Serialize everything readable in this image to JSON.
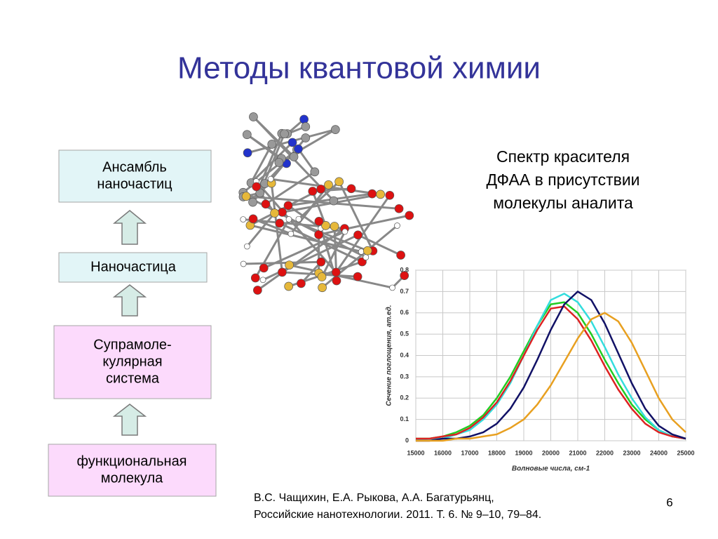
{
  "title": "Методы квантовой химии",
  "boxes": [
    {
      "lines": [
        "Ансамбль",
        "наночастиц"
      ]
    },
    {
      "lines": [
        "Наночастица"
      ]
    },
    {
      "lines": [
        "Супрамоле-",
        "кулярная",
        "система"
      ]
    },
    {
      "lines": [
        "функциональная",
        "молекула"
      ]
    }
  ],
  "caption": [
    "Спектр красителя",
    "ДФАА в присутствии",
    "молекулы аналита"
  ],
  "reference": [
    "В.С. Чащихин, Е.А. Рыкова, А.А. Багатурьянц,",
    "Российские нанотехнологии. 2011. Т. 6. № 9–10, 79–84."
  ],
  "page_number": "6",
  "chart_data": {
    "type": "line",
    "xlabel": "Волновые числа, см-1",
    "ylabel": "Сечение поглощения, ат.ед.",
    "x": [
      15000,
      15500,
      16000,
      16500,
      17000,
      17500,
      18000,
      18500,
      19000,
      19500,
      20000,
      20500,
      21000,
      21500,
      22000,
      22500,
      23000,
      23500,
      24000,
      24500,
      25000
    ],
    "series": [
      {
        "color": "#22cc22",
        "values": [
          0.01,
          0.01,
          0.02,
          0.04,
          0.07,
          0.12,
          0.2,
          0.3,
          0.42,
          0.54,
          0.64,
          0.65,
          0.6,
          0.5,
          0.38,
          0.27,
          0.17,
          0.1,
          0.05,
          0.02,
          0.01
        ]
      },
      {
        "color": "#33dddd",
        "values": [
          0,
          0.01,
          0.01,
          0.03,
          0.05,
          0.1,
          0.17,
          0.27,
          0.4,
          0.54,
          0.66,
          0.69,
          0.65,
          0.56,
          0.44,
          0.31,
          0.2,
          0.11,
          0.05,
          0.02,
          0.01
        ]
      },
      {
        "color": "#dd2222",
        "values": [
          0.01,
          0.01,
          0.02,
          0.03,
          0.06,
          0.11,
          0.18,
          0.28,
          0.4,
          0.52,
          0.62,
          0.63,
          0.57,
          0.47,
          0.35,
          0.24,
          0.15,
          0.08,
          0.04,
          0.02,
          0.01
        ]
      },
      {
        "color": "#111166",
        "values": [
          0,
          0,
          0.01,
          0.01,
          0.02,
          0.04,
          0.08,
          0.15,
          0.25,
          0.38,
          0.52,
          0.64,
          0.7,
          0.66,
          0.55,
          0.41,
          0.27,
          0.15,
          0.07,
          0.03,
          0.01
        ]
      },
      {
        "color": "#e8a020",
        "values": [
          0,
          0,
          0,
          0.01,
          0.01,
          0.02,
          0.03,
          0.06,
          0.1,
          0.17,
          0.26,
          0.37,
          0.48,
          0.57,
          0.6,
          0.56,
          0.46,
          0.33,
          0.2,
          0.1,
          0.04
        ]
      }
    ],
    "xlim": [
      15000,
      25000
    ],
    "ylim": [
      0,
      0.8
    ],
    "xticks": [
      15000,
      16000,
      17000,
      18000,
      19000,
      20000,
      21000,
      22000,
      23000,
      24000,
      25000
    ],
    "yticks": [
      0,
      0.1,
      0.2,
      0.3,
      0.4,
      0.5,
      0.6,
      0.7,
      0.8
    ],
    "grid": true
  }
}
